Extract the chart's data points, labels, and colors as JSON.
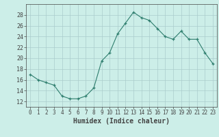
{
  "x": [
    0,
    1,
    2,
    3,
    4,
    5,
    6,
    7,
    8,
    9,
    10,
    11,
    12,
    13,
    14,
    15,
    16,
    17,
    18,
    19,
    20,
    21,
    22,
    23
  ],
  "y": [
    17,
    16,
    15.5,
    15,
    13,
    12.5,
    12.5,
    13,
    14.5,
    19.5,
    21,
    24.5,
    26.5,
    28.5,
    27.5,
    27,
    25.5,
    24,
    23.5,
    25,
    23.5,
    23.5,
    21,
    19
  ],
  "xlabel": "Humidex (Indice chaleur)",
  "xlim": [
    -0.5,
    23.5
  ],
  "ylim": [
    11,
    30
  ],
  "yticks": [
    12,
    14,
    16,
    18,
    20,
    22,
    24,
    26,
    28
  ],
  "xticks": [
    0,
    1,
    2,
    3,
    4,
    5,
    6,
    7,
    8,
    9,
    10,
    11,
    12,
    13,
    14,
    15,
    16,
    17,
    18,
    19,
    20,
    21,
    22,
    23
  ],
  "line_color": "#2d7d6d",
  "marker": "+",
  "bg_color": "#cceee8",
  "grid_color": "#aacccc",
  "axis_color": "#444444",
  "tick_label_size": 6,
  "xlabel_size": 7
}
